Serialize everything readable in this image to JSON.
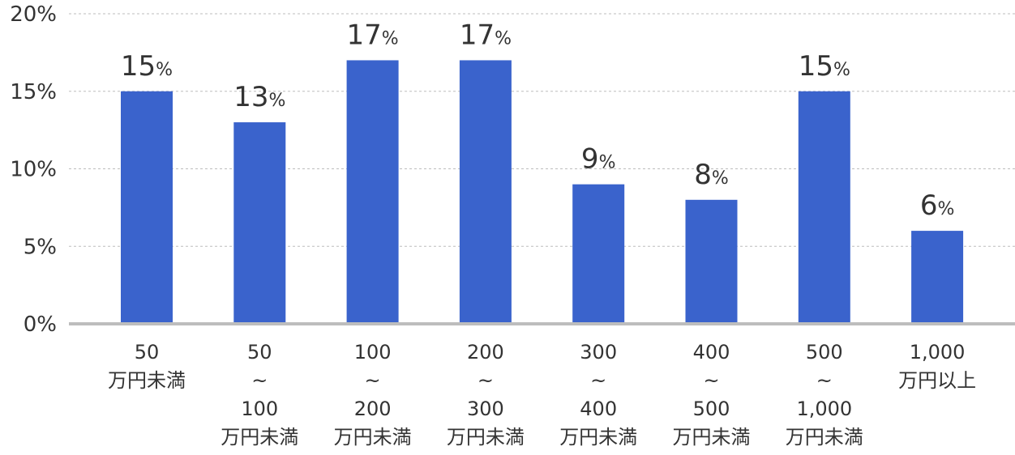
{
  "chart_data": {
    "type": "bar",
    "categories": [
      [
        "50",
        "万円未満"
      ],
      [
        "50",
        "~",
        "100",
        "万円未満"
      ],
      [
        "100",
        "~",
        "200",
        "万円未満"
      ],
      [
        "200",
        "~",
        "300",
        "万円未満"
      ],
      [
        "300",
        "~",
        "400",
        "万円未満"
      ],
      [
        "400",
        "~",
        "500",
        "万円未満"
      ],
      [
        "500",
        "~",
        "1,000",
        "万円未満"
      ],
      [
        "1,000",
        "万円以上"
      ]
    ],
    "values": [
      15,
      13,
      17,
      17,
      9,
      8,
      15,
      6
    ],
    "value_suffix": "%",
    "y_ticks": [
      "0%",
      "5%",
      "10%",
      "15%",
      "20%"
    ],
    "ylim": [
      0,
      20
    ],
    "grid": true,
    "colors": {
      "bar": "#3a63cc",
      "grid": "#bdbdbd",
      "axis": "#bdbdbd",
      "text": "#333333"
    }
  }
}
